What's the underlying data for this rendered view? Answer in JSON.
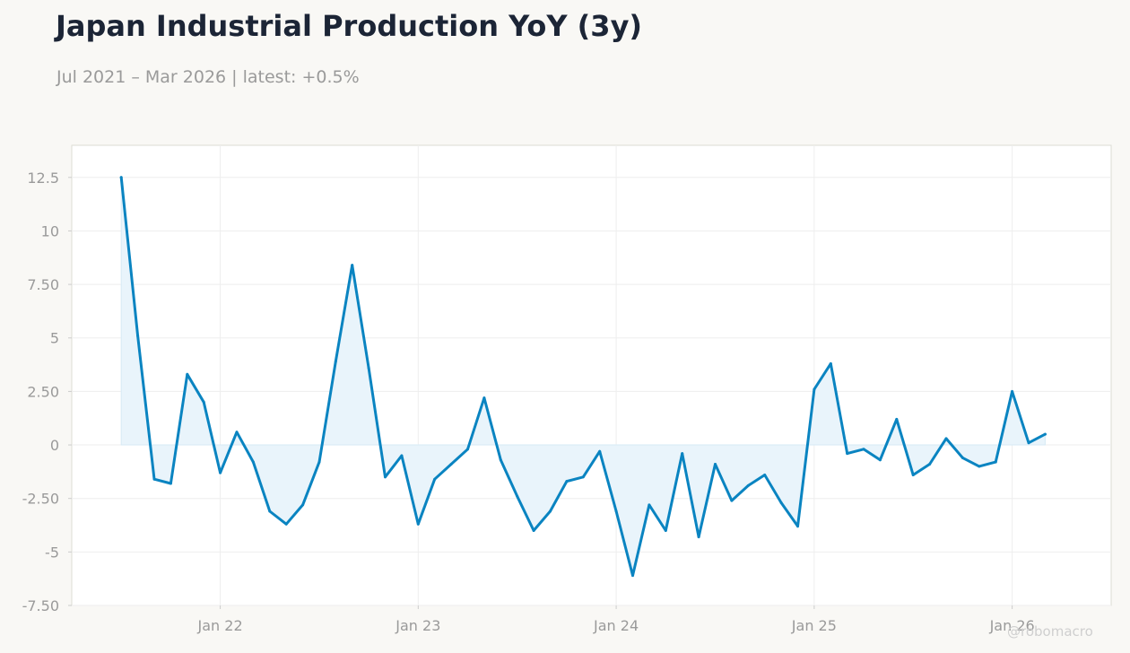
{
  "title": "Japan Industrial Production YoY (3y)",
  "subtitle": "Jul 2021 – Mar 2026 | latest: +0.5%",
  "watermark": "@robomacro",
  "colors": {
    "background": "#f9f8f5",
    "plot_background": "#ffffff",
    "line": "#0a84c1",
    "fill": "#e9f4fb",
    "title": "#1c2536",
    "muted_text": "#9a9a9a",
    "grid": "#eeeeee"
  },
  "chart_data": {
    "type": "area",
    "title": "Japan Industrial Production YoY (3y)",
    "x_start": "2021-07",
    "x_end": "2026-03",
    "frequency": "monthly",
    "series": [
      {
        "values": [
          12.5,
          5.1,
          -1.6,
          -1.8,
          3.3,
          2.0,
          -1.3,
          0.6,
          -0.8,
          -3.1,
          -3.7,
          -2.8,
          -0.8,
          3.9,
          8.4,
          3.6,
          -1.5,
          -0.5,
          -3.7,
          -1.6,
          -0.9,
          -0.2,
          2.2,
          -0.7,
          -2.4,
          -4.0,
          -3.1,
          -1.7,
          -1.5,
          -0.3,
          -3.1,
          -6.1,
          -2.8,
          -4.0,
          -0.4,
          -4.3,
          -0.9,
          -2.6,
          -1.9,
          -1.4,
          -2.7,
          -3.8,
          2.6,
          3.8,
          -0.4,
          -0.2,
          -0.7,
          1.2,
          -1.4,
          -0.9,
          0.3,
          -0.6,
          -1.0,
          -0.8,
          2.5,
          0.1,
          0.5
        ]
      }
    ],
    "yticks": [
      "12.5",
      "10",
      "7.50",
      "5",
      "2.50",
      "0",
      "-2.50",
      "-5",
      "-7.50"
    ],
    "ylim": [
      -7.5,
      14
    ],
    "xticks": [
      "Jan 22",
      "Jan 23",
      "Jan 24",
      "Jan 25",
      "Jan 26"
    ],
    "xlim": [
      "2021-04",
      "2026-07"
    ],
    "grid": true,
    "legend": "none"
  }
}
